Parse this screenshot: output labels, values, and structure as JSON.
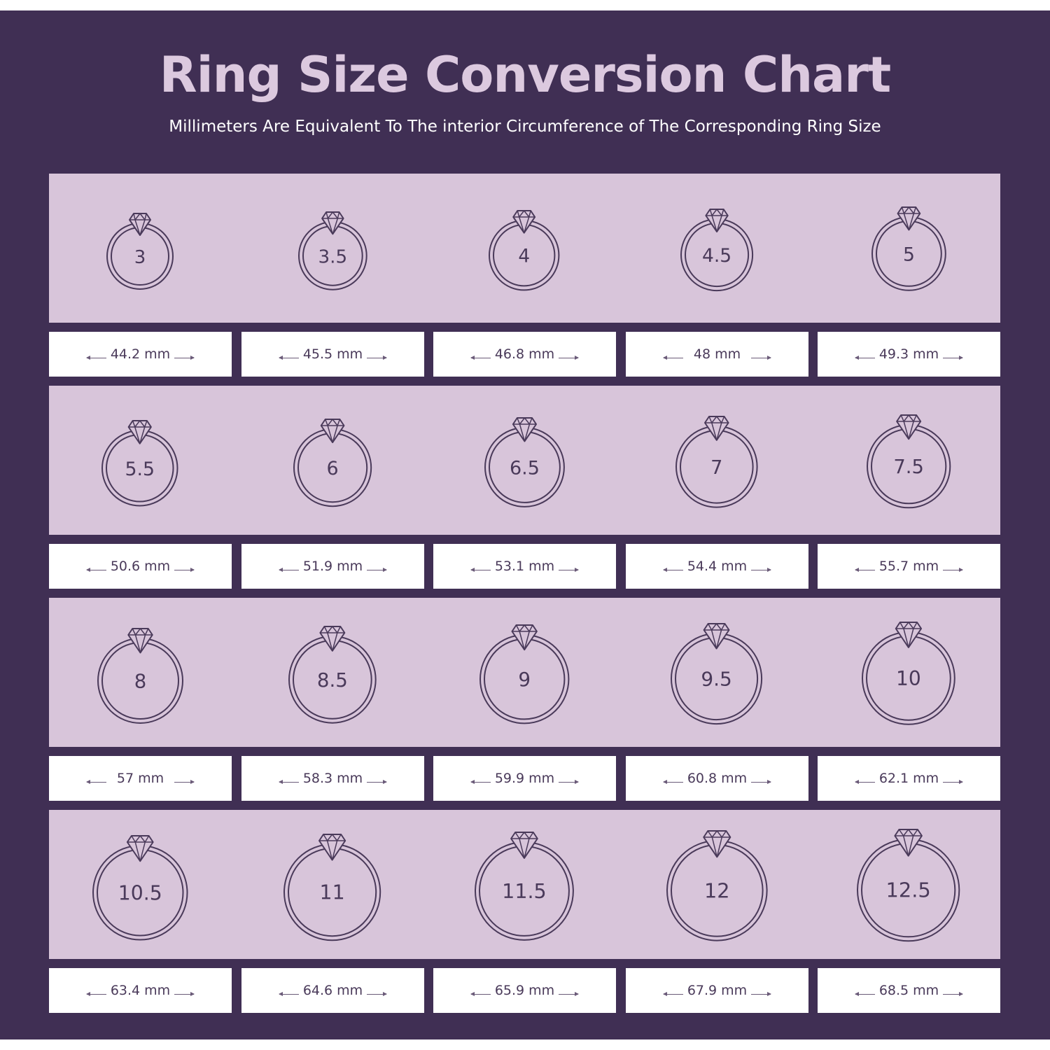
{
  "title": "Ring Size Conversion Chart",
  "subtitle": "Millimeters Are Equivalent To The interior Circumference of The Corresponding Ring Size",
  "colors": {
    "background": "#402f54",
    "band": "#d8c5da",
    "title": "#dcc9df",
    "ring_stroke": "#4a3a5a",
    "cell": "#ffffff"
  },
  "icon": "ring-with-diamond-icon",
  "sizes": [
    {
      "size": "3",
      "mm": "44.2 mm"
    },
    {
      "size": "3.5",
      "mm": "45.5 mm"
    },
    {
      "size": "4",
      "mm": "46.8 mm"
    },
    {
      "size": "4.5",
      "mm": "48 mm"
    },
    {
      "size": "5",
      "mm": "49.3 mm"
    },
    {
      "size": "5.5",
      "mm": "50.6 mm"
    },
    {
      "size": "6",
      "mm": "51.9 mm"
    },
    {
      "size": "6.5",
      "mm": "53.1 mm"
    },
    {
      "size": "7",
      "mm": "54.4 mm"
    },
    {
      "size": "7.5",
      "mm": "55.7 mm"
    },
    {
      "size": "8",
      "mm": "57 mm"
    },
    {
      "size": "8.5",
      "mm": "58.3 mm"
    },
    {
      "size": "9",
      "mm": "59.9 mm"
    },
    {
      "size": "9.5",
      "mm": "60.8 mm"
    },
    {
      "size": "10",
      "mm": "62.1 mm"
    },
    {
      "size": "10.5",
      "mm": "63.4 mm"
    },
    {
      "size": "11",
      "mm": "64.6 mm"
    },
    {
      "size": "11.5",
      "mm": "65.9 mm"
    },
    {
      "size": "12",
      "mm": "67.9 mm"
    },
    {
      "size": "12.5",
      "mm": "68.5 mm"
    }
  ]
}
